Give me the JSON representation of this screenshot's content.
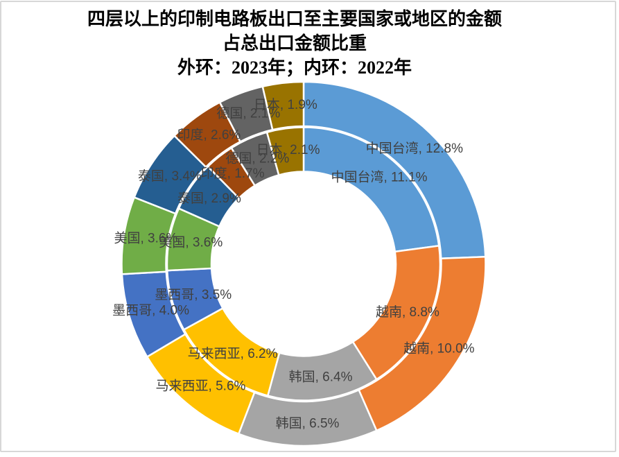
{
  "title": {
    "line1": "四层以上的印制电路板出口至主要国家或地区的金额",
    "line2": "占总出口金额比重",
    "line3": "外环：2023年；内环：2022年"
  },
  "chart_data": {
    "type": "pie",
    "variant": "double-ring-doughnut",
    "title": "四层以上的印制电路板出口至主要国家或地区的金额占总出口金额比重",
    "subtitle": "外环：2023年；内环：2022年",
    "categories": [
      "中国台湾",
      "越南",
      "韩国",
      "马来西亚",
      "墨西哥",
      "美国",
      "泰国",
      "印度",
      "德国",
      "日本"
    ],
    "series": [
      {
        "name": "2023年",
        "ring": "outer",
        "values": [
          12.8,
          10.0,
          6.5,
          5.6,
          4.0,
          3.6,
          3.4,
          2.6,
          2.1,
          1.9
        ]
      },
      {
        "name": "2022年",
        "ring": "inner",
        "values": [
          11.1,
          8.8,
          6.4,
          6.2,
          3.5,
          3.6,
          2.9,
          1.7,
          2.2,
          2.1
        ]
      }
    ],
    "colors": [
      "#5B9BD5",
      "#ED7D31",
      "#A5A5A5",
      "#FFC000",
      "#4472C4",
      "#70AD47",
      "#255E91",
      "#9E480E",
      "#636363",
      "#997300"
    ],
    "label_format": "{category}, {value}%",
    "label_color": "#404040",
    "slice_border_color": "#FFFFFF",
    "legend": "none",
    "start_angle_deg": 0,
    "direction": "clockwise",
    "normalization": "each ring's slices are proportional to that ring's own total"
  }
}
